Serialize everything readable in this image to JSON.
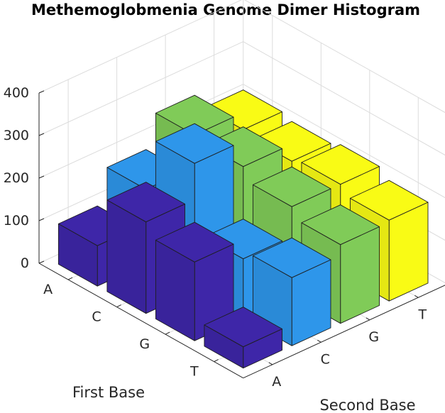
{
  "chart_data": {
    "type": "bar3",
    "title": "Methemoglobmenia Genome Dimer Histogram",
    "xlabel": "Second Base",
    "ylabel": "First Base",
    "zlim": [
      0,
      400
    ],
    "zticks": [
      "0",
      "100",
      "200",
      "300",
      "400"
    ],
    "first_base": [
      "A",
      "C",
      "G",
      "T"
    ],
    "second_base": [
      "A",
      "C",
      "G",
      "T"
    ],
    "grid": true,
    "series": [
      {
        "second_base": "A",
        "color": "#3e26a8",
        "values": [
          95,
          215,
          185,
          50
        ]
      },
      {
        "second_base": "C",
        "color": "#2e96ea",
        "values": [
          175,
          300,
          140,
          160
        ]
      },
      {
        "second_base": "G",
        "color": "#80cb58",
        "values": [
          250,
          240,
          210,
          185
        ]
      },
      {
        "second_base": "T",
        "color": "#f9fb15",
        "values": [
          210,
          200,
          210,
          190
        ]
      }
    ]
  }
}
